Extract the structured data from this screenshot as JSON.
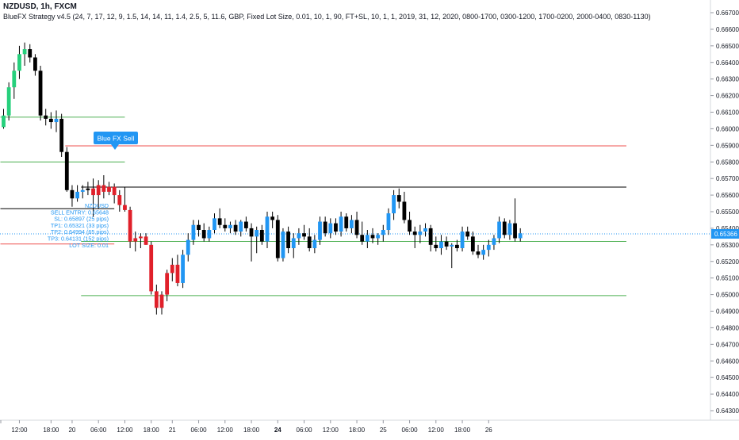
{
  "header": {
    "title": "NZDUSD, 1h, FXCM",
    "strategy": "BlueFX Strategy v4.5 (24, 7, 17, 12, 9, 1.5, 14, 14, 11, 1.4, 2.5, 5, 11.6, GBP, Fixed Lot Size, 0.01, 10, 1, 90, FT+SL, 10, 1, 1, 2019, 31, 12, 2020, 0800-1700, 0300-1200, 1700-0200, 2000-0400, 0830-1130)"
  },
  "signal": {
    "label": "Blue FX Sell",
    "info_lines": [
      "NZDUSD",
      "SELL ENTRY: 0.65648",
      "SL: 0.65897 (25 pips)",
      "TP1: 0.65321 (33 pips)",
      "TP2: 0.64994 (65 pips)",
      "TP3: 0.64131 (152 pips)",
      "LOT SIZE: 0.01"
    ]
  },
  "colors": {
    "up": "#2196f3",
    "up_early": "#26d07c",
    "down": "#000000",
    "down_red": "#e0202a",
    "sl_line": "#ef5350",
    "tp_line": "#4caf50",
    "entry_line": "#000000",
    "current_price": "#2196f3",
    "axis_text": "#131722"
  },
  "chart_data": {
    "type": "candlestick",
    "symbol": "NZDUSD",
    "timeframe": "1h",
    "ylim": [
      0.6425,
      0.6678
    ],
    "y_ticks": [
      "0.66700",
      "0.66600",
      "0.66500",
      "0.66400",
      "0.66300",
      "0.66200",
      "0.66100",
      "0.66000",
      "0.65900",
      "0.65800",
      "0.65700",
      "0.65600",
      "0.65500",
      "0.65400",
      "0.65300",
      "0.65200",
      "0.65100",
      "0.65000",
      "0.64900",
      "0.64800",
      "0.64700",
      "0.64600",
      "0.64500",
      "0.64400",
      "0.64300"
    ],
    "x_ticks": [
      {
        "label": "12:00",
        "bar": 3,
        "bold": false
      },
      {
        "label": "18:00",
        "bar": 9,
        "bold": false
      },
      {
        "label": "20",
        "bar": 13,
        "bold": false
      },
      {
        "label": "06:00",
        "bar": 18,
        "bold": false
      },
      {
        "label": "12:00",
        "bar": 23,
        "bold": false
      },
      {
        "label": "18:00",
        "bar": 28,
        "bold": false
      },
      {
        "label": "21",
        "bar": 32,
        "bold": false
      },
      {
        "label": "06:00",
        "bar": 37,
        "bold": false
      },
      {
        "label": "12:00",
        "bar": 42,
        "bold": false
      },
      {
        "label": "18:00",
        "bar": 47,
        "bold": false
      },
      {
        "label": "24",
        "bar": 52,
        "bold": true
      },
      {
        "label": "06:00",
        "bar": 57,
        "bold": false
      },
      {
        "label": "12:00",
        "bar": 62,
        "bold": false
      },
      {
        "label": "18:00",
        "bar": 67,
        "bold": false
      },
      {
        "label": "25",
        "bar": 72,
        "bold": false
      },
      {
        "label": "06:00",
        "bar": 77,
        "bold": false
      },
      {
        "label": "12:00",
        "bar": 82,
        "bold": false
      },
      {
        "label": "18:00",
        "bar": 87,
        "bold": false
      },
      {
        "label": "26",
        "bar": 92,
        "bold": false
      }
    ],
    "current_price": 0.65366,
    "current_price_label": "0.65366",
    "levels": [
      {
        "name": "SL",
        "price": 0.65897,
        "kind": "sl",
        "from_bar": 12
      },
      {
        "name": "SELL ENTRY",
        "price": 0.65648,
        "kind": "entry",
        "from_bar": 15
      },
      {
        "name": "TP1",
        "price": 0.65321,
        "kind": "tp",
        "from_bar": 15
      },
      {
        "name": "TP2",
        "price": 0.64994,
        "kind": "tp",
        "from_bar": 15
      }
    ],
    "candles": [
      {
        "o": 0.6601,
        "h": 0.6612,
        "l": 0.66,
        "c": 0.6608,
        "k": "g"
      },
      {
        "o": 0.6608,
        "h": 0.6628,
        "l": 0.6605,
        "c": 0.6625,
        "k": "g"
      },
      {
        "o": 0.6625,
        "h": 0.664,
        "l": 0.6618,
        "c": 0.6635,
        "k": "g"
      },
      {
        "o": 0.6635,
        "h": 0.665,
        "l": 0.663,
        "c": 0.6645,
        "k": "g"
      },
      {
        "o": 0.6645,
        "h": 0.6652,
        "l": 0.6638,
        "c": 0.6648,
        "k": "g"
      },
      {
        "o": 0.6648,
        "h": 0.6651,
        "l": 0.664,
        "c": 0.6643,
        "k": "d"
      },
      {
        "o": 0.6643,
        "h": 0.6645,
        "l": 0.6632,
        "c": 0.6635,
        "k": "d"
      },
      {
        "o": 0.6635,
        "h": 0.6638,
        "l": 0.6605,
        "c": 0.6608,
        "k": "d"
      },
      {
        "o": 0.6608,
        "h": 0.6612,
        "l": 0.6602,
        "c": 0.6606,
        "k": "d"
      },
      {
        "o": 0.6606,
        "h": 0.661,
        "l": 0.66,
        "c": 0.6604,
        "k": "d"
      },
      {
        "o": 0.6604,
        "h": 0.6611,
        "l": 0.6598,
        "c": 0.6606,
        "k": "u"
      },
      {
        "o": 0.6606,
        "h": 0.6609,
        "l": 0.6583,
        "c": 0.6586,
        "k": "d"
      },
      {
        "o": 0.6586,
        "h": 0.6589,
        "l": 0.6562,
        "c": 0.6563,
        "k": "d"
      },
      {
        "o": 0.6563,
        "h": 0.6566,
        "l": 0.6553,
        "c": 0.6558,
        "k": "d"
      },
      {
        "o": 0.6558,
        "h": 0.6566,
        "l": 0.6556,
        "c": 0.6562,
        "k": "u"
      },
      {
        "o": 0.6562,
        "h": 0.6566,
        "l": 0.6558,
        "c": 0.6563,
        "k": "u"
      },
      {
        "o": 0.6563,
        "h": 0.6568,
        "l": 0.656,
        "c": 0.6564,
        "k": "d"
      },
      {
        "o": 0.6564,
        "h": 0.657,
        "l": 0.6547,
        "c": 0.656,
        "k": "r"
      },
      {
        "o": 0.656,
        "h": 0.6569,
        "l": 0.6552,
        "c": 0.6566,
        "k": "r"
      },
      {
        "o": 0.6566,
        "h": 0.6572,
        "l": 0.6558,
        "c": 0.6562,
        "k": "r"
      },
      {
        "o": 0.6562,
        "h": 0.6568,
        "l": 0.656,
        "c": 0.6565,
        "k": "r"
      },
      {
        "o": 0.6565,
        "h": 0.6567,
        "l": 0.6555,
        "c": 0.656,
        "k": "r"
      },
      {
        "o": 0.656,
        "h": 0.6563,
        "l": 0.655,
        "c": 0.6554,
        "k": "r"
      },
      {
        "o": 0.6554,
        "h": 0.6565,
        "l": 0.655,
        "c": 0.6551,
        "k": "r"
      },
      {
        "o": 0.6551,
        "h": 0.6553,
        "l": 0.6528,
        "c": 0.6532,
        "k": "r"
      },
      {
        "o": 0.6532,
        "h": 0.6538,
        "l": 0.6526,
        "c": 0.6534,
        "k": "r"
      },
      {
        "o": 0.6534,
        "h": 0.6537,
        "l": 0.6528,
        "c": 0.6535,
        "k": "r"
      },
      {
        "o": 0.6535,
        "h": 0.6537,
        "l": 0.653,
        "c": 0.653,
        "k": "r"
      },
      {
        "o": 0.653,
        "h": 0.6532,
        "l": 0.65,
        "c": 0.6502,
        "k": "r"
      },
      {
        "o": 0.6502,
        "h": 0.6506,
        "l": 0.6488,
        "c": 0.6492,
        "k": "r"
      },
      {
        "o": 0.6492,
        "h": 0.6502,
        "l": 0.6488,
        "c": 0.65,
        "k": "r"
      },
      {
        "o": 0.65,
        "h": 0.6515,
        "l": 0.6496,
        "c": 0.6513,
        "k": "r"
      },
      {
        "o": 0.6513,
        "h": 0.6522,
        "l": 0.6508,
        "c": 0.6518,
        "k": "r"
      },
      {
        "o": 0.6518,
        "h": 0.6524,
        "l": 0.6505,
        "c": 0.6507,
        "k": "r"
      },
      {
        "o": 0.6507,
        "h": 0.6527,
        "l": 0.6504,
        "c": 0.6524,
        "k": "u"
      },
      {
        "o": 0.6524,
        "h": 0.6537,
        "l": 0.652,
        "c": 0.6533,
        "k": "u"
      },
      {
        "o": 0.6533,
        "h": 0.6545,
        "l": 0.653,
        "c": 0.6542,
        "k": "u"
      },
      {
        "o": 0.6542,
        "h": 0.6545,
        "l": 0.6535,
        "c": 0.6539,
        "k": "d"
      },
      {
        "o": 0.6539,
        "h": 0.6543,
        "l": 0.6532,
        "c": 0.6534,
        "k": "d"
      },
      {
        "o": 0.6534,
        "h": 0.6541,
        "l": 0.6532,
        "c": 0.6539,
        "k": "u"
      },
      {
        "o": 0.6539,
        "h": 0.6549,
        "l": 0.6537,
        "c": 0.6546,
        "k": "u"
      },
      {
        "o": 0.6546,
        "h": 0.6552,
        "l": 0.654,
        "c": 0.6542,
        "k": "d"
      },
      {
        "o": 0.6542,
        "h": 0.6546,
        "l": 0.6538,
        "c": 0.654,
        "k": "d"
      },
      {
        "o": 0.654,
        "h": 0.6544,
        "l": 0.6537,
        "c": 0.6542,
        "k": "u"
      },
      {
        "o": 0.6542,
        "h": 0.6545,
        "l": 0.6536,
        "c": 0.6538,
        "k": "d"
      },
      {
        "o": 0.6538,
        "h": 0.6545,
        "l": 0.6535,
        "c": 0.6544,
        "k": "u"
      },
      {
        "o": 0.6544,
        "h": 0.6547,
        "l": 0.6538,
        "c": 0.654,
        "k": "d"
      },
      {
        "o": 0.654,
        "h": 0.6543,
        "l": 0.652,
        "c": 0.6535,
        "k": "d"
      },
      {
        "o": 0.6535,
        "h": 0.6541,
        "l": 0.6525,
        "c": 0.6539,
        "k": "u"
      },
      {
        "o": 0.6539,
        "h": 0.6542,
        "l": 0.653,
        "c": 0.6532,
        "k": "d"
      },
      {
        "o": 0.6532,
        "h": 0.655,
        "l": 0.6528,
        "c": 0.6547,
        "k": "u"
      },
      {
        "o": 0.6547,
        "h": 0.655,
        "l": 0.654,
        "c": 0.6545,
        "k": "d"
      },
      {
        "o": 0.6545,
        "h": 0.6548,
        "l": 0.652,
        "c": 0.6522,
        "k": "d"
      },
      {
        "o": 0.6522,
        "h": 0.654,
        "l": 0.652,
        "c": 0.6538,
        "k": "u"
      },
      {
        "o": 0.6538,
        "h": 0.6541,
        "l": 0.6525,
        "c": 0.6528,
        "k": "d"
      },
      {
        "o": 0.6528,
        "h": 0.6537,
        "l": 0.6522,
        "c": 0.6534,
        "k": "u"
      },
      {
        "o": 0.6534,
        "h": 0.654,
        "l": 0.653,
        "c": 0.6537,
        "k": "u"
      },
      {
        "o": 0.6537,
        "h": 0.6542,
        "l": 0.6533,
        "c": 0.6535,
        "k": "d"
      },
      {
        "o": 0.6535,
        "h": 0.654,
        "l": 0.6526,
        "c": 0.6528,
        "k": "d"
      },
      {
        "o": 0.6528,
        "h": 0.6536,
        "l": 0.6525,
        "c": 0.6533,
        "k": "u"
      },
      {
        "o": 0.6533,
        "h": 0.6547,
        "l": 0.653,
        "c": 0.6544,
        "k": "u"
      },
      {
        "o": 0.6544,
        "h": 0.6547,
        "l": 0.6535,
        "c": 0.6537,
        "k": "d"
      },
      {
        "o": 0.6537,
        "h": 0.6546,
        "l": 0.6534,
        "c": 0.6543,
        "k": "u"
      },
      {
        "o": 0.6543,
        "h": 0.6546,
        "l": 0.6536,
        "c": 0.6538,
        "k": "d"
      },
      {
        "o": 0.6538,
        "h": 0.655,
        "l": 0.6535,
        "c": 0.6547,
        "k": "u"
      },
      {
        "o": 0.6547,
        "h": 0.6549,
        "l": 0.6538,
        "c": 0.654,
        "k": "d"
      },
      {
        "o": 0.654,
        "h": 0.6548,
        "l": 0.6537,
        "c": 0.6545,
        "k": "u"
      },
      {
        "o": 0.6545,
        "h": 0.655,
        "l": 0.6534,
        "c": 0.6536,
        "k": "d"
      },
      {
        "o": 0.6536,
        "h": 0.6544,
        "l": 0.653,
        "c": 0.6532,
        "k": "d"
      },
      {
        "o": 0.6532,
        "h": 0.6539,
        "l": 0.6528,
        "c": 0.6536,
        "k": "u"
      },
      {
        "o": 0.6536,
        "h": 0.654,
        "l": 0.6531,
        "c": 0.6534,
        "k": "d"
      },
      {
        "o": 0.6534,
        "h": 0.6537,
        "l": 0.653,
        "c": 0.6536,
        "k": "u"
      },
      {
        "o": 0.6536,
        "h": 0.6542,
        "l": 0.6532,
        "c": 0.6539,
        "k": "u"
      },
      {
        "o": 0.6539,
        "h": 0.6552,
        "l": 0.6536,
        "c": 0.6549,
        "k": "u"
      },
      {
        "o": 0.6549,
        "h": 0.6563,
        "l": 0.6545,
        "c": 0.656,
        "k": "u"
      },
      {
        "o": 0.656,
        "h": 0.6564,
        "l": 0.6552,
        "c": 0.6556,
        "k": "d"
      },
      {
        "o": 0.6556,
        "h": 0.6562,
        "l": 0.6543,
        "c": 0.6545,
        "k": "d"
      },
      {
        "o": 0.6545,
        "h": 0.655,
        "l": 0.6536,
        "c": 0.6538,
        "k": "d"
      },
      {
        "o": 0.6538,
        "h": 0.6541,
        "l": 0.6528,
        "c": 0.6536,
        "k": "d"
      },
      {
        "o": 0.6536,
        "h": 0.6542,
        "l": 0.6531,
        "c": 0.6538,
        "k": "u"
      },
      {
        "o": 0.6538,
        "h": 0.6543,
        "l": 0.6535,
        "c": 0.654,
        "k": "u"
      },
      {
        "o": 0.654,
        "h": 0.6542,
        "l": 0.6526,
        "c": 0.653,
        "k": "d"
      },
      {
        "o": 0.653,
        "h": 0.6535,
        "l": 0.6526,
        "c": 0.6528,
        "k": "d"
      },
      {
        "o": 0.6528,
        "h": 0.6536,
        "l": 0.6524,
        "c": 0.6532,
        "k": "u"
      },
      {
        "o": 0.6532,
        "h": 0.6535,
        "l": 0.6527,
        "c": 0.6529,
        "k": "d"
      },
      {
        "o": 0.6529,
        "h": 0.6531,
        "l": 0.6516,
        "c": 0.653,
        "k": "u"
      },
      {
        "o": 0.653,
        "h": 0.6533,
        "l": 0.6526,
        "c": 0.6528,
        "k": "d"
      },
      {
        "o": 0.6528,
        "h": 0.6541,
        "l": 0.6526,
        "c": 0.6538,
        "k": "u"
      },
      {
        "o": 0.6538,
        "h": 0.6541,
        "l": 0.6533,
        "c": 0.6535,
        "k": "d"
      },
      {
        "o": 0.6535,
        "h": 0.6538,
        "l": 0.6524,
        "c": 0.6526,
        "k": "d"
      },
      {
        "o": 0.6526,
        "h": 0.653,
        "l": 0.6522,
        "c": 0.6524,
        "k": "d"
      },
      {
        "o": 0.6524,
        "h": 0.653,
        "l": 0.6521,
        "c": 0.6527,
        "k": "u"
      },
      {
        "o": 0.6527,
        "h": 0.6533,
        "l": 0.6523,
        "c": 0.653,
        "k": "u"
      },
      {
        "o": 0.653,
        "h": 0.6536,
        "l": 0.6527,
        "c": 0.6534,
        "k": "u"
      },
      {
        "o": 0.6534,
        "h": 0.6547,
        "l": 0.6531,
        "c": 0.6544,
        "k": "u"
      },
      {
        "o": 0.6544,
        "h": 0.6546,
        "l": 0.6534,
        "c": 0.6536,
        "k": "d"
      },
      {
        "o": 0.6536,
        "h": 0.6545,
        "l": 0.6533,
        "c": 0.6543,
        "k": "u"
      },
      {
        "o": 0.6543,
        "h": 0.6558,
        "l": 0.6532,
        "c": 0.6534,
        "k": "d"
      },
      {
        "o": 0.6534,
        "h": 0.654,
        "l": 0.6532,
        "c": 0.6537,
        "k": "u"
      }
    ]
  }
}
